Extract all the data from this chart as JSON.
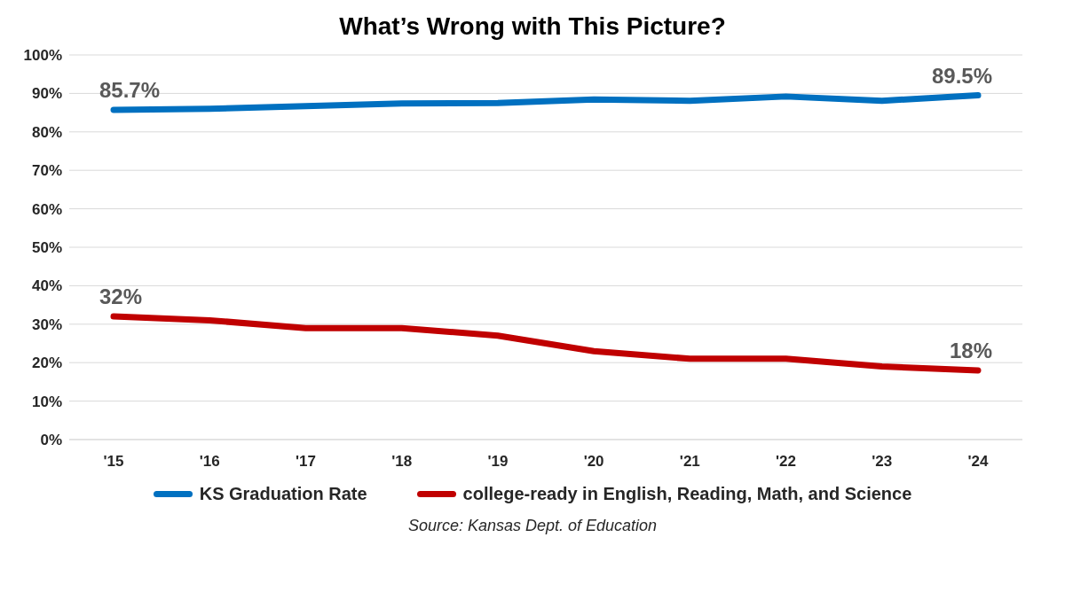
{
  "chart_data": {
    "type": "line",
    "title": "What’s Wrong with This Picture?",
    "categories": [
      "'15",
      "'16",
      "'17",
      "'18",
      "'19",
      "'20",
      "'21",
      "'22",
      "'23",
      "'24"
    ],
    "series": [
      {
        "name": "KS Graduation Rate",
        "color": "#0070c0",
        "values": [
          85.7,
          86.0,
          86.7,
          87.4,
          87.5,
          88.4,
          88.1,
          89.2,
          88.1,
          89.5
        ],
        "value_labels": [
          "85.7%",
          null,
          null,
          null,
          null,
          null,
          null,
          null,
          null,
          "89.5%"
        ]
      },
      {
        "name": "college-ready in English, Reading, Math, and Science",
        "color": "#c00000",
        "values": [
          32,
          31,
          29,
          29,
          27,
          23,
          21,
          21,
          19,
          18
        ],
        "value_labels": [
          "32%",
          null,
          null,
          null,
          null,
          null,
          null,
          null,
          null,
          "18%"
        ]
      }
    ],
    "ylim": [
      0,
      100
    ],
    "yticks": [
      {
        "value": 0,
        "label": "0%"
      },
      {
        "value": 10,
        "label": "10%"
      },
      {
        "value": 20,
        "label": "20%"
      },
      {
        "value": 30,
        "label": "30%"
      },
      {
        "value": 40,
        "label": "40%"
      },
      {
        "value": 50,
        "label": "50%"
      },
      {
        "value": 60,
        "label": "60%"
      },
      {
        "value": 70,
        "label": "70%"
      },
      {
        "value": 80,
        "label": "80%"
      },
      {
        "value": 90,
        "label": "90%"
      },
      {
        "value": 100,
        "label": "100%"
      }
    ],
    "grid": "y",
    "legend": "bottom",
    "marker": "none",
    "line_style": "solid",
    "annotations": [
      "Source: Kansas Dept. of Education"
    ]
  }
}
